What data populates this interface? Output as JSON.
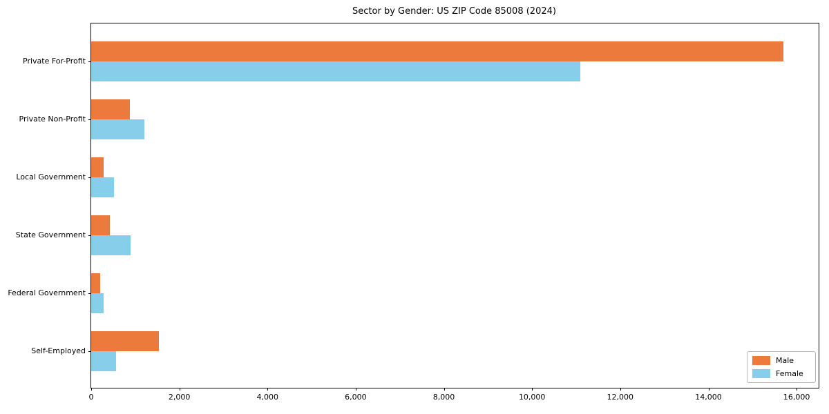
{
  "chart_data": {
    "type": "bar",
    "orientation": "horizontal",
    "title": "Sector by Gender: US ZIP Code 85008 (2024)",
    "xlabel": "",
    "ylabel": "",
    "categories": [
      "Private For-Profit",
      "Private Non-Profit",
      "Local Government",
      "State Government",
      "Federal Government",
      "Self-Employed"
    ],
    "series": [
      {
        "name": "Male",
        "color": "#EB7A3C",
        "values": [
          15700,
          875,
          280,
          430,
          210,
          1530
        ]
      },
      {
        "name": "Female",
        "color": "#87CEEB",
        "values": [
          11100,
          1200,
          510,
          900,
          275,
          560
        ]
      }
    ],
    "xlim": [
      0,
      16500
    ],
    "xticks": [
      0,
      2000,
      4000,
      6000,
      8000,
      10000,
      12000,
      14000,
      16000
    ],
    "xtick_labels": [
      "0",
      "2,000",
      "4,000",
      "6,000",
      "8,000",
      "10,000",
      "12,000",
      "14,000",
      "16,000"
    ],
    "grid": "off",
    "legend": {
      "position": "lower right",
      "entries": [
        "Male",
        "Female"
      ]
    }
  }
}
